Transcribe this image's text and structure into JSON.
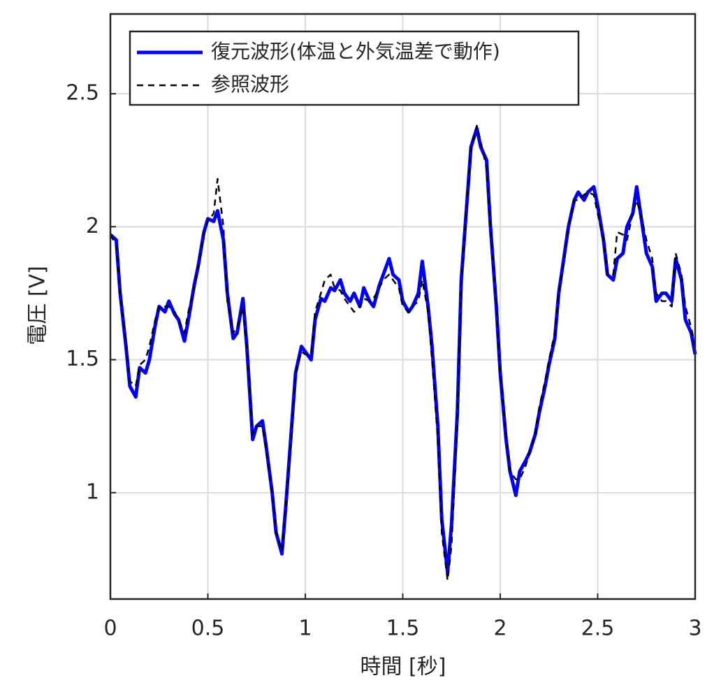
{
  "chart_data": {
    "type": "line",
    "xlabel": "時間 [秒]",
    "ylabel": "電圧 [V]",
    "xlim": [
      0,
      3
    ],
    "ylim": [
      0.6,
      2.8
    ],
    "xticks": [
      0,
      0.5,
      1,
      1.5,
      2,
      2.5,
      3
    ],
    "yticks": [
      1,
      1.5,
      2,
      2.5
    ],
    "grid": true,
    "legend": "upper left",
    "x": [
      0,
      0.03,
      0.05,
      0.08,
      0.1,
      0.13,
      0.15,
      0.18,
      0.2,
      0.23,
      0.25,
      0.28,
      0.3,
      0.33,
      0.35,
      0.38,
      0.4,
      0.43,
      0.45,
      0.48,
      0.5,
      0.53,
      0.55,
      0.58,
      0.6,
      0.63,
      0.65,
      0.68,
      0.7,
      0.73,
      0.75,
      0.78,
      0.8,
      0.83,
      0.85,
      0.88,
      0.9,
      0.93,
      0.95,
      0.98,
      1.0,
      1.03,
      1.05,
      1.08,
      1.1,
      1.13,
      1.15,
      1.18,
      1.2,
      1.23,
      1.25,
      1.28,
      1.3,
      1.33,
      1.35,
      1.38,
      1.4,
      1.43,
      1.45,
      1.48,
      1.5,
      1.53,
      1.55,
      1.58,
      1.6,
      1.63,
      1.65,
      1.68,
      1.7,
      1.73,
      1.75,
      1.78,
      1.8,
      1.83,
      1.85,
      1.88,
      1.9,
      1.93,
      1.95,
      1.98,
      2.0,
      2.03,
      2.05,
      2.08,
      2.1,
      2.13,
      2.15,
      2.18,
      2.2,
      2.23,
      2.25,
      2.28,
      2.3,
      2.33,
      2.35,
      2.38,
      2.4,
      2.43,
      2.45,
      2.48,
      2.5,
      2.53,
      2.55,
      2.58,
      2.6,
      2.63,
      2.65,
      2.68,
      2.7,
      2.73,
      2.75,
      2.78,
      2.8,
      2.83,
      2.85,
      2.88,
      2.9,
      2.93,
      2.95,
      2.98,
      3.0
    ],
    "series": [
      {
        "name": "復元波形(体温と外気温差で動作)",
        "color": "#0000ff",
        "style": "solid",
        "values": [
          1.97,
          1.95,
          1.75,
          1.55,
          1.4,
          1.36,
          1.47,
          1.45,
          1.5,
          1.63,
          1.7,
          1.68,
          1.72,
          1.67,
          1.65,
          1.57,
          1.65,
          1.78,
          1.85,
          1.98,
          2.03,
          2.02,
          2.06,
          1.95,
          1.75,
          1.58,
          1.6,
          1.73,
          1.55,
          1.2,
          1.25,
          1.27,
          1.17,
          1.0,
          0.85,
          0.77,
          0.95,
          1.25,
          1.45,
          1.55,
          1.53,
          1.5,
          1.65,
          1.73,
          1.72,
          1.77,
          1.76,
          1.8,
          1.75,
          1.72,
          1.75,
          1.7,
          1.77,
          1.72,
          1.7,
          1.78,
          1.82,
          1.88,
          1.82,
          1.8,
          1.72,
          1.68,
          1.7,
          1.75,
          1.87,
          1.7,
          1.55,
          1.25,
          0.9,
          0.7,
          0.88,
          1.3,
          1.8,
          2.1,
          2.3,
          2.37,
          2.3,
          2.25,
          2.0,
          1.7,
          1.45,
          1.2,
          1.08,
          0.99,
          1.08,
          1.12,
          1.15,
          1.22,
          1.3,
          1.4,
          1.48,
          1.58,
          1.75,
          1.9,
          2.0,
          2.1,
          2.13,
          2.1,
          2.13,
          2.15,
          2.08,
          1.95,
          1.82,
          1.8,
          1.88,
          1.9,
          2.0,
          2.05,
          2.15,
          2.0,
          1.9,
          1.85,
          1.72,
          1.75,
          1.75,
          1.72,
          1.88,
          1.8,
          1.65,
          1.6,
          1.52
        ]
      },
      {
        "name": "参照波形",
        "color": "#000000",
        "style": "dashed",
        "values": [
          1.97,
          1.93,
          1.75,
          1.57,
          1.42,
          1.4,
          1.48,
          1.5,
          1.55,
          1.65,
          1.7,
          1.7,
          1.7,
          1.68,
          1.65,
          1.6,
          1.68,
          1.77,
          1.85,
          1.97,
          2.02,
          2.05,
          2.18,
          2.0,
          1.72,
          1.6,
          1.62,
          1.7,
          1.55,
          1.22,
          1.25,
          1.25,
          1.15,
          1.0,
          0.85,
          0.78,
          0.95,
          1.22,
          1.45,
          1.53,
          1.52,
          1.52,
          1.68,
          1.75,
          1.8,
          1.82,
          1.77,
          1.76,
          1.73,
          1.7,
          1.68,
          1.7,
          1.73,
          1.72,
          1.73,
          1.77,
          1.8,
          1.82,
          1.8,
          1.77,
          1.7,
          1.68,
          1.7,
          1.72,
          1.8,
          1.68,
          1.5,
          1.2,
          0.85,
          0.67,
          0.8,
          1.25,
          1.78,
          2.1,
          2.3,
          2.38,
          2.32,
          2.22,
          2.0,
          1.7,
          1.45,
          1.22,
          1.08,
          1.05,
          1.05,
          1.1,
          1.15,
          1.22,
          1.32,
          1.42,
          1.5,
          1.6,
          1.75,
          1.88,
          2.0,
          2.1,
          2.1,
          2.12,
          2.13,
          2.12,
          2.05,
          1.95,
          1.82,
          1.82,
          1.98,
          1.97,
          1.95,
          2.05,
          2.1,
          2.02,
          1.95,
          1.88,
          1.75,
          1.72,
          1.72,
          1.7,
          1.9,
          1.82,
          1.7,
          1.62,
          1.55
        ]
      }
    ]
  }
}
